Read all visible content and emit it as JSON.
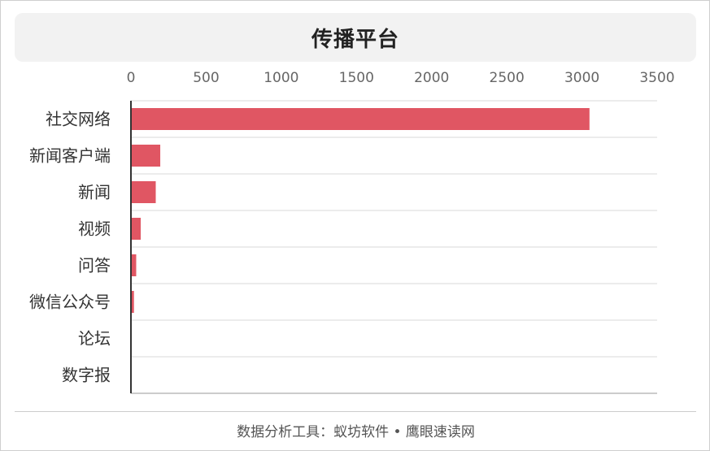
{
  "footer": {
    "text": "数据分析工具：蚁坊软件 • 鹰眼速读网"
  },
  "chart_data": {
    "type": "bar",
    "orientation": "horizontal",
    "title": "传播平台",
    "categories": [
      "社交网络",
      "新闻客户端",
      "新闻",
      "视频",
      "问答",
      "微信公众号",
      "论坛",
      "数字报"
    ],
    "values": [
      3050,
      195,
      165,
      65,
      35,
      20,
      0,
      0
    ],
    "xlim": [
      0,
      3500
    ],
    "xticks": [
      0,
      500,
      1000,
      1500,
      2000,
      2500,
      3000,
      3500
    ],
    "bar_color": "#e05663",
    "grid": true,
    "legend": "none"
  }
}
